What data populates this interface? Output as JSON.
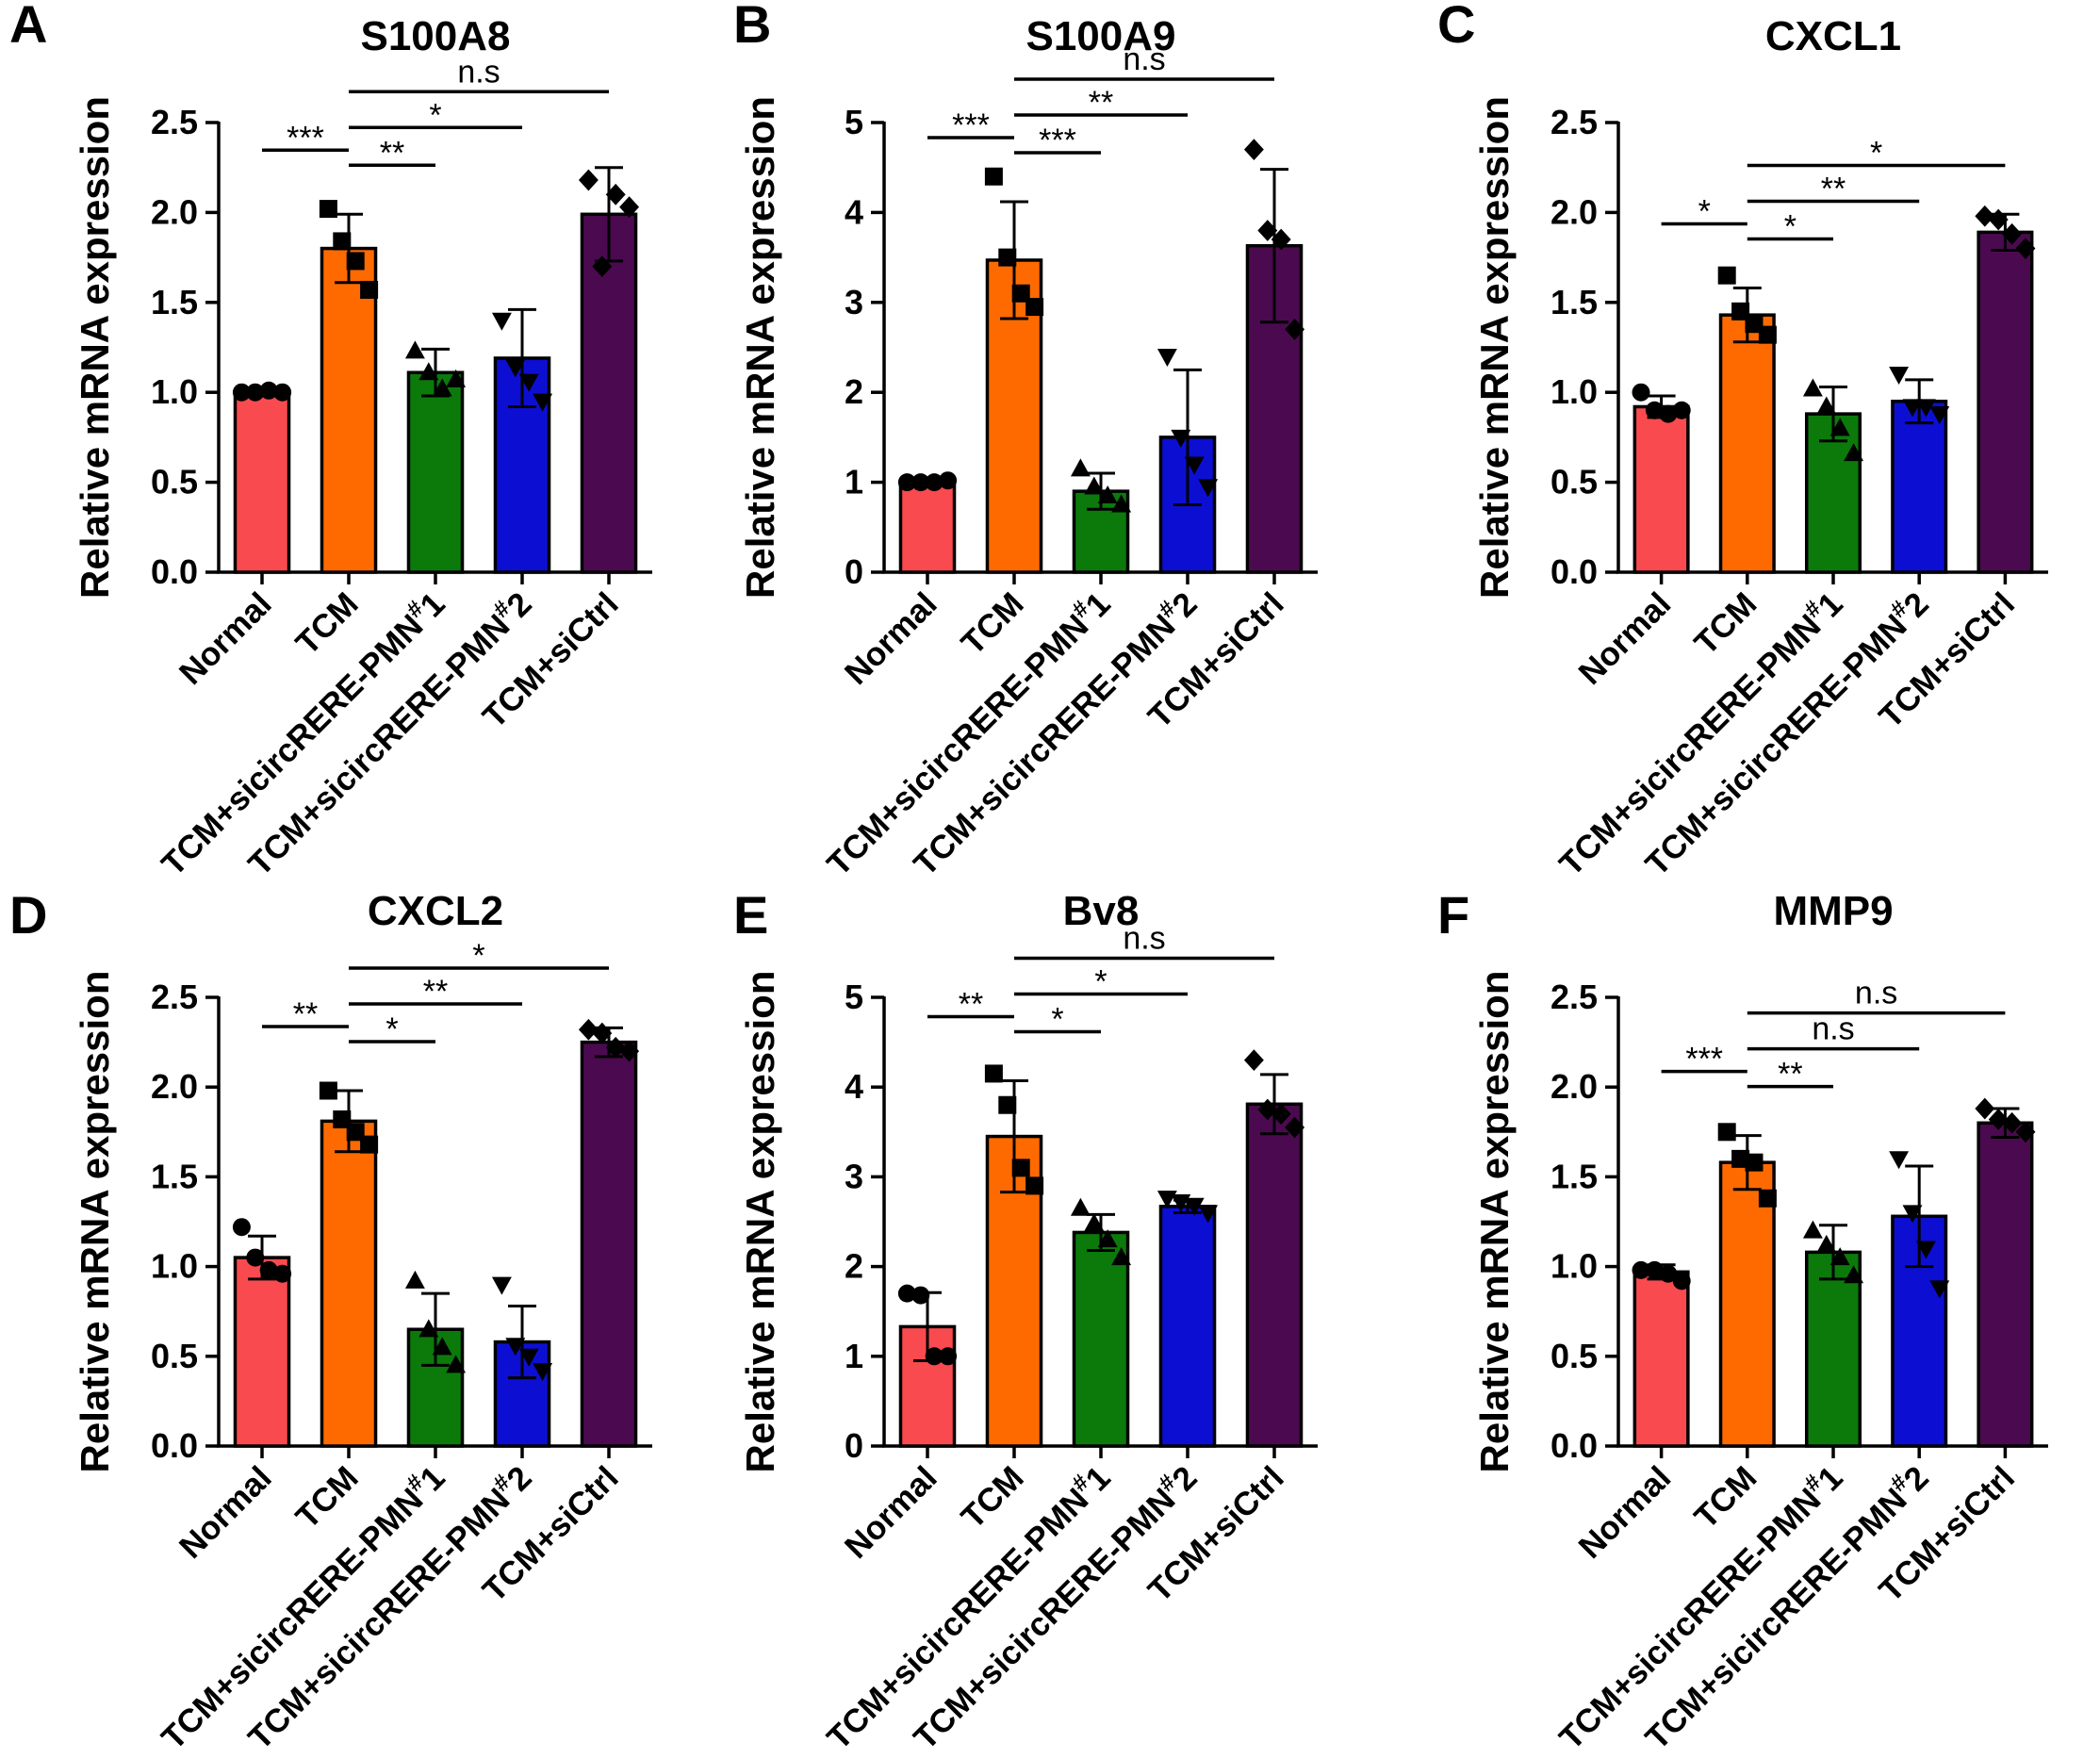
{
  "chart_data": [
    {
      "panel": "A",
      "type": "bar",
      "title": "S100A8",
      "ylabel": "Relative mRNA expression",
      "ylim": [
        0,
        2.5
      ],
      "yticks": [
        "0.0",
        "0.5",
        "1.0",
        "1.5",
        "2.0",
        "2.5"
      ],
      "categories": [
        "Normal",
        "TCM",
        "TCM+sicircRERE-PMN#1",
        "TCM+sicircRERE-PMN#2",
        "TCM+siCtrl"
      ],
      "values": [
        1.0,
        1.8,
        1.11,
        1.19,
        1.99
      ],
      "errors": [
        0.02,
        0.19,
        0.13,
        0.27,
        0.26
      ],
      "points": [
        [
          1.0,
          1.0,
          1.01,
          1.0
        ],
        [
          2.02,
          1.84,
          1.73,
          1.57
        ],
        [
          1.23,
          1.11,
          1.02,
          1.07
        ],
        [
          1.4,
          1.14,
          1.06,
          0.95
        ],
        [
          2.18,
          1.7,
          2.1,
          2.03
        ]
      ],
      "significance": [
        {
          "from": 0,
          "to": 1,
          "label": "***"
        },
        {
          "from": 1,
          "to": 2,
          "label": "**"
        },
        {
          "from": 1,
          "to": 3,
          "label": "*"
        },
        {
          "from": 1,
          "to": 4,
          "label": "n.s"
        }
      ]
    },
    {
      "panel": "B",
      "type": "bar",
      "title": "S100A9",
      "ylabel": "Relative mRNA expression",
      "ylim": [
        0,
        5
      ],
      "yticks": [
        "0",
        "1",
        "2",
        "3",
        "4",
        "5"
      ],
      "categories": [
        "Normal",
        "TCM",
        "TCM+sicircRERE-PMN#1",
        "TCM+sicircRERE-PMN#2",
        "TCM+siCtrl"
      ],
      "values": [
        1.0,
        3.47,
        0.9,
        1.5,
        3.63
      ],
      "errors": [
        0.04,
        0.65,
        0.2,
        0.75,
        0.85
      ],
      "points": [
        [
          1.0,
          1.0,
          1.0,
          1.02
        ],
        [
          4.4,
          3.5,
          3.1,
          2.95
        ],
        [
          1.15,
          0.95,
          0.85,
          0.75
        ],
        [
          2.4,
          1.5,
          1.2,
          0.95
        ],
        [
          4.7,
          3.8,
          3.7,
          2.7
        ]
      ],
      "significance": [
        {
          "from": 0,
          "to": 1,
          "label": "***"
        },
        {
          "from": 1,
          "to": 2,
          "label": "***"
        },
        {
          "from": 1,
          "to": 3,
          "label": "**"
        },
        {
          "from": 1,
          "to": 4,
          "label": "n.s"
        }
      ]
    },
    {
      "panel": "C",
      "type": "bar",
      "title": "CXCL1",
      "ylabel": "Relative mRNA expression",
      "ylim": [
        0,
        2.5
      ],
      "yticks": [
        "0.0",
        "0.5",
        "1.0",
        "1.5",
        "2.0",
        "2.5"
      ],
      "categories": [
        "Normal",
        "TCM",
        "TCM+sicircRERE-PMN#1",
        "TCM+sicircRERE-PMN#2",
        "TCM+siCtrl"
      ],
      "values": [
        0.92,
        1.43,
        0.88,
        0.95,
        1.89
      ],
      "errors": [
        0.06,
        0.15,
        0.15,
        0.12,
        0.1
      ],
      "points": [
        [
          1.0,
          0.9,
          0.88,
          0.9
        ],
        [
          1.65,
          1.45,
          1.38,
          1.32
        ],
        [
          1.02,
          0.92,
          0.8,
          0.66
        ],
        [
          1.1,
          0.92,
          0.92,
          0.88
        ],
        [
          1.98,
          1.96,
          1.88,
          1.8
        ]
      ],
      "significance": [
        {
          "from": 0,
          "to": 1,
          "label": "*"
        },
        {
          "from": 1,
          "to": 2,
          "label": "*"
        },
        {
          "from": 1,
          "to": 3,
          "label": "**"
        },
        {
          "from": 1,
          "to": 4,
          "label": "*"
        }
      ]
    },
    {
      "panel": "D",
      "type": "bar",
      "title": "CXCL2",
      "ylabel": "Relative mRNA expression",
      "ylim": [
        0,
        2.5
      ],
      "yticks": [
        "0.0",
        "0.5",
        "1.0",
        "1.5",
        "2.0",
        "2.5"
      ],
      "categories": [
        "Normal",
        "TCM",
        "TCM+sicircRERE-PMN#1",
        "TCM+sicircRERE-PMN#2",
        "TCM+siCtrl"
      ],
      "values": [
        1.05,
        1.81,
        0.65,
        0.58,
        2.25
      ],
      "errors": [
        0.12,
        0.17,
        0.2,
        0.2,
        0.08
      ],
      "points": [
        [
          1.22,
          1.05,
          0.98,
          0.96
        ],
        [
          1.98,
          1.82,
          1.75,
          1.68
        ],
        [
          0.92,
          0.65,
          0.55,
          0.45
        ],
        [
          0.9,
          0.56,
          0.5,
          0.42
        ],
        [
          2.32,
          2.3,
          2.22,
          2.2
        ]
      ],
      "significance": [
        {
          "from": 0,
          "to": 1,
          "label": "**"
        },
        {
          "from": 1,
          "to": 2,
          "label": "*"
        },
        {
          "from": 1,
          "to": 3,
          "label": "**"
        },
        {
          "from": 1,
          "to": 4,
          "label": "*"
        }
      ]
    },
    {
      "panel": "E",
      "type": "bar",
      "title": "Bv8",
      "ylabel": "Relative mRNA expression",
      "ylim": [
        0,
        5
      ],
      "yticks": [
        "0",
        "1",
        "2",
        "3",
        "4",
        "5"
      ],
      "categories": [
        "Normal",
        "TCM",
        "TCM+sicircRERE-PMN#1",
        "TCM+sicircRERE-PMN#2",
        "TCM+siCtrl"
      ],
      "values": [
        1.33,
        3.45,
        2.38,
        2.67,
        3.81
      ],
      "errors": [
        0.38,
        0.62,
        0.2,
        0.07,
        0.33
      ],
      "points": [
        [
          1.7,
          1.68,
          1.0,
          1.0
        ],
        [
          4.15,
          3.8,
          3.1,
          2.9
        ],
        [
          2.65,
          2.48,
          2.3,
          2.1
        ],
        [
          2.76,
          2.72,
          2.68,
          2.6
        ],
        [
          4.3,
          3.75,
          3.7,
          3.55
        ]
      ],
      "significance": [
        {
          "from": 0,
          "to": 1,
          "label": "**"
        },
        {
          "from": 1,
          "to": 2,
          "label": "*"
        },
        {
          "from": 1,
          "to": 3,
          "label": "*"
        },
        {
          "from": 1,
          "to": 4,
          "label": "n.s"
        }
      ]
    },
    {
      "panel": "F",
      "type": "bar",
      "title": "MMP9",
      "ylabel": "Relative mRNA expression",
      "ylim": [
        0,
        2.5
      ],
      "yticks": [
        "0.0",
        "0.5",
        "1.0",
        "1.5",
        "2.0",
        "2.5"
      ],
      "categories": [
        "Normal",
        "TCM",
        "TCM+sicircRERE-PMN#1",
        "TCM+sicircRERE-PMN#2",
        "TCM+siCtrl"
      ],
      "values": [
        0.97,
        1.58,
        1.08,
        1.28,
        1.8
      ],
      "errors": [
        0.04,
        0.15,
        0.15,
        0.28,
        0.08
      ],
      "points": [
        [
          0.98,
          0.98,
          0.96,
          0.92
        ],
        [
          1.75,
          1.6,
          1.58,
          1.38
        ],
        [
          1.2,
          1.12,
          1.05,
          0.95
        ],
        [
          1.6,
          1.3,
          1.1,
          0.88
        ],
        [
          1.88,
          1.82,
          1.8,
          1.75
        ]
      ],
      "significance": [
        {
          "from": 0,
          "to": 1,
          "label": "***"
        },
        {
          "from": 1,
          "to": 2,
          "label": "**"
        },
        {
          "from": 1,
          "to": 3,
          "label": "n.s"
        },
        {
          "from": 1,
          "to": 4,
          "label": "n.s"
        }
      ]
    }
  ],
  "style": {
    "bar_colors": [
      "#f94a4f",
      "#ff6a00",
      "#0b7a0b",
      "#0c0fd2",
      "#4b0a4f"
    ],
    "marker_shapes": [
      "circle",
      "square",
      "triangle-up",
      "triangle-down",
      "diamond"
    ]
  }
}
